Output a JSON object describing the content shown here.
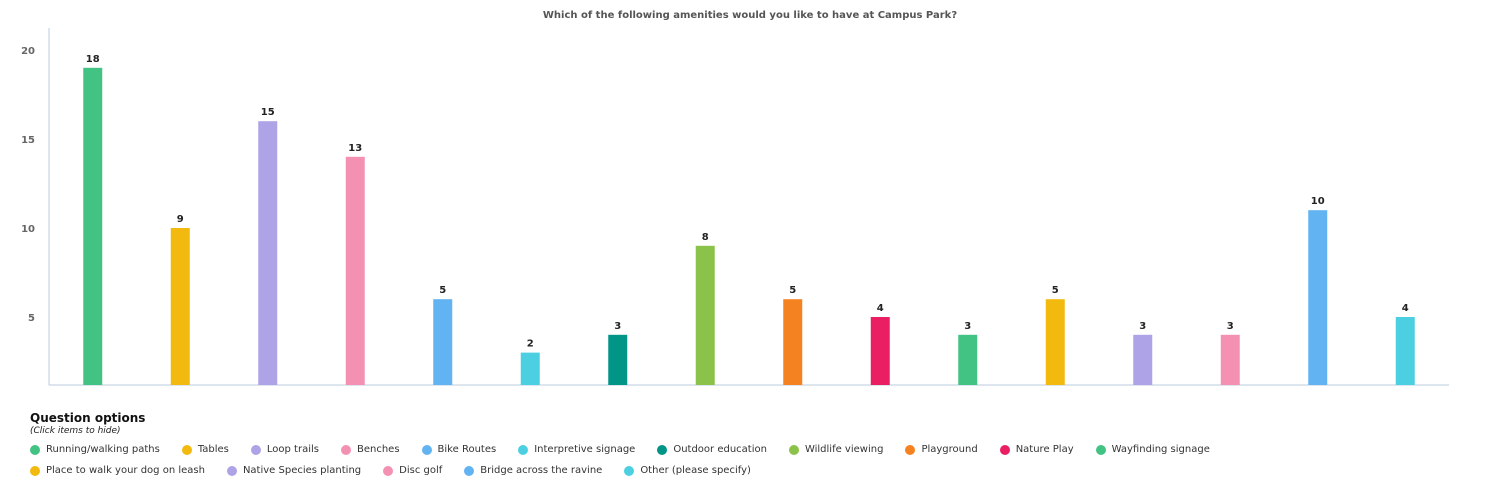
{
  "chart_data": {
    "type": "bar",
    "title": "Which of the following amenities would you like to have at Campus Park?",
    "xlabel": "",
    "ylabel": "",
    "yticks": [
      5,
      10,
      15,
      20
    ],
    "ylim": [
      1.2,
      21
    ],
    "grid": false,
    "legend_placement": "bottom-left",
    "categories": [
      "Running/walking paths",
      "Tables",
      "Loop trails",
      "Benches",
      "Bike Routes",
      "Interpretive signage",
      "Outdoor education",
      "Wildlife viewing",
      "Playground",
      "Nature Play",
      "Wayfinding signage",
      "Place to walk your dog on leash",
      "Native Species planting",
      "Disc golf",
      "Bridge across the ravine",
      "Other (please specify)"
    ],
    "values": [
      18,
      9,
      15,
      13,
      5,
      2,
      3,
      8,
      5,
      4,
      3,
      5,
      3,
      3,
      10,
      4
    ],
    "colors": [
      "#42c383",
      "#f2b90f",
      "#ada3e6",
      "#f490b1",
      "#62b3f2",
      "#4cd0e1",
      "#009587",
      "#8bc34a",
      "#f58220",
      "#e91e63",
      "#42c383",
      "#f2b90f",
      "#ada3e6",
      "#f490b1",
      "#62b3f2",
      "#4cd0e1"
    ]
  },
  "legend": {
    "title": "Question options",
    "hint": "(Click items to hide)"
  }
}
